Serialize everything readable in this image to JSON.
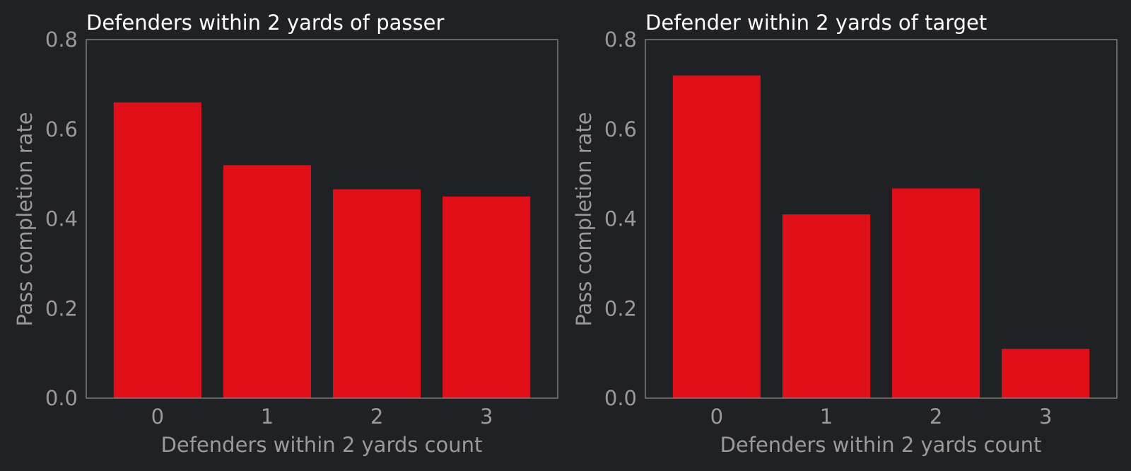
{
  "chart_data": [
    {
      "type": "bar",
      "title": "Defenders within 2 yards of passer",
      "xlabel": "Defenders within 2 yards count",
      "ylabel": "Pass completion rate",
      "categories": [
        "0",
        "1",
        "2",
        "3"
      ],
      "values": [
        0.66,
        0.52,
        0.466,
        0.45
      ],
      "ylim": [
        0,
        0.8
      ],
      "yticks": [
        "0.0",
        "0.2",
        "0.4",
        "0.6",
        "0.8"
      ],
      "grid": false,
      "bar_color": "#e10f18"
    },
    {
      "type": "bar",
      "title": "Defender within 2 yards of target",
      "xlabel": "Defenders within 2 yards count",
      "ylabel": "Pass completion rate",
      "categories": [
        "0",
        "1",
        "2",
        "3"
      ],
      "values": [
        0.72,
        0.41,
        0.468,
        0.11
      ],
      "ylim": [
        0,
        0.8
      ],
      "yticks": [
        "0.0",
        "0.2",
        "0.4",
        "0.6",
        "0.8"
      ],
      "grid": false,
      "bar_color": "#e10f18"
    }
  ],
  "colors": {
    "background": "#202124",
    "bar": "#e10f18",
    "frame": "#8a8a8a",
    "title": "#ffffff",
    "label": "#9a9a9a"
  }
}
